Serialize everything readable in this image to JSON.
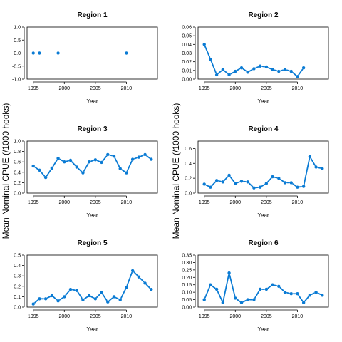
{
  "figure": {
    "ylabel": "Mean Nominal CPUE (/1000 hooks)",
    "series_color": "#0a7bd4"
  },
  "chart_data": [
    {
      "type": "line",
      "title": "Region 1",
      "xlabel": "Year",
      "ylabel": "",
      "xlim": [
        1994,
        2015
      ],
      "ylim": [
        -1.0,
        1.0
      ],
      "xticks": [
        1995,
        2000,
        2005,
        2010
      ],
      "yticks": [
        -1.0,
        -0.5,
        0.0,
        0.5,
        1.0
      ],
      "ytick_labels": [
        "-1.0",
        "-0.5",
        "0.0",
        "0.5",
        "1.0"
      ],
      "series": [
        {
          "x": [
            1995,
            1996,
            1999,
            2010
          ],
          "y": [
            0,
            0,
            0,
            0
          ],
          "connect": false
        }
      ]
    },
    {
      "type": "line",
      "title": "Region 2",
      "xlabel": "Year",
      "ylabel": "",
      "xlim": [
        1994,
        2015
      ],
      "ylim": [
        0,
        0.06
      ],
      "xticks": [
        1995,
        2000,
        2005,
        2010
      ],
      "yticks": [
        0,
        0.01,
        0.02,
        0.03,
        0.04,
        0.05,
        0.06
      ],
      "ytick_labels": [
        "0.00",
        "0.01",
        "0.02",
        "0.03",
        "0.04",
        "0.05",
        "0.06"
      ],
      "series": [
        {
          "x": [
            1995,
            1996,
            1997,
            1998,
            1999,
            2000,
            2001,
            2002,
            2003,
            2004,
            2005,
            2006,
            2007,
            2008,
            2009,
            2010,
            2011
          ],
          "y": [
            0.04,
            0.023,
            0.005,
            0.011,
            0.005,
            0.009,
            0.013,
            0.008,
            0.012,
            0.015,
            0.014,
            0.011,
            0.009,
            0.011,
            0.009,
            0.003,
            0.013
          ],
          "connect": true
        }
      ]
    },
    {
      "type": "line",
      "title": "Region 3",
      "xlabel": "Year",
      "ylabel": "",
      "xlim": [
        1994,
        2015
      ],
      "ylim": [
        0,
        1.0
      ],
      "xticks": [
        1995,
        2000,
        2005,
        2010
      ],
      "yticks": [
        0,
        0.2,
        0.4,
        0.6,
        0.8,
        1.0
      ],
      "ytick_labels": [
        "0.0",
        "0.2",
        "0.4",
        "0.6",
        "0.8",
        "1.0"
      ],
      "series": [
        {
          "x": [
            1995,
            1996,
            1997,
            1998,
            1999,
            2000,
            2001,
            2002,
            2003,
            2004,
            2005,
            2006,
            2007,
            2008,
            2009,
            2010,
            2011,
            2012,
            2013,
            2014
          ],
          "y": [
            0.52,
            0.44,
            0.3,
            0.48,
            0.67,
            0.6,
            0.63,
            0.5,
            0.39,
            0.6,
            0.64,
            0.59,
            0.74,
            0.71,
            0.47,
            0.39,
            0.65,
            0.69,
            0.74,
            0.65
          ],
          "connect": true
        }
      ]
    },
    {
      "type": "line",
      "title": "Region 4",
      "xlabel": "Year",
      "ylabel": "",
      "xlim": [
        1994,
        2015
      ],
      "ylim": [
        0,
        0.7
      ],
      "xticks": [
        1995,
        2000,
        2005,
        2010
      ],
      "yticks": [
        0,
        0.2,
        0.4,
        0.6
      ],
      "ytick_labels": [
        "0.0",
        "0.2",
        "0.4",
        "0.6"
      ],
      "series": [
        {
          "x": [
            1995,
            1996,
            1997,
            1998,
            1999,
            2000,
            2001,
            2002,
            2003,
            2004,
            2005,
            2006,
            2007,
            2008,
            2009,
            2010,
            2011,
            2012,
            2013,
            2014
          ],
          "y": [
            0.12,
            0.08,
            0.17,
            0.15,
            0.24,
            0.13,
            0.16,
            0.15,
            0.07,
            0.08,
            0.13,
            0.22,
            0.2,
            0.14,
            0.14,
            0.08,
            0.09,
            0.49,
            0.35,
            0.33
          ],
          "connect": true
        }
      ]
    },
    {
      "type": "line",
      "title": "Region 5",
      "xlabel": "Year",
      "ylabel": "",
      "xlim": [
        1994,
        2015
      ],
      "ylim": [
        0,
        0.5
      ],
      "xticks": [
        1995,
        2000,
        2005,
        2010
      ],
      "yticks": [
        0,
        0.1,
        0.2,
        0.3,
        0.4,
        0.5
      ],
      "ytick_labels": [
        "0.0",
        "0.1",
        "0.2",
        "0.3",
        "0.4",
        "0.5"
      ],
      "series": [
        {
          "x": [
            1995,
            1996,
            1997,
            1998,
            1999,
            2000,
            2001,
            2002,
            2003,
            2004,
            2005,
            2006,
            2007,
            2008,
            2009,
            2010,
            2011,
            2012,
            2013,
            2014
          ],
          "y": [
            0.03,
            0.08,
            0.08,
            0.11,
            0.06,
            0.1,
            0.17,
            0.16,
            0.07,
            0.11,
            0.08,
            0.14,
            0.05,
            0.1,
            0.07,
            0.19,
            0.35,
            0.29,
            0.23,
            0.17
          ],
          "connect": true
        }
      ]
    },
    {
      "type": "line",
      "title": "Region 6",
      "xlabel": "Year",
      "ylabel": "",
      "xlim": [
        1994,
        2015
      ],
      "ylim": [
        0,
        0.35
      ],
      "xticks": [
        1995,
        2000,
        2005,
        2010
      ],
      "yticks": [
        0,
        0.05,
        0.1,
        0.15,
        0.2,
        0.25,
        0.3,
        0.35
      ],
      "ytick_labels": [
        "0.00",
        "0.05",
        "0.10",
        "0.15",
        "0.20",
        "0.25",
        "0.30",
        "0.35"
      ],
      "series": [
        {
          "x": [
            1995,
            1996,
            1997,
            1998,
            1999,
            2000,
            2001,
            2002,
            2003,
            2004,
            2005,
            2006,
            2007,
            2008,
            2009,
            2010,
            2011,
            2012,
            2013,
            2014
          ],
          "y": [
            0.05,
            0.15,
            0.12,
            0.03,
            0.23,
            0.06,
            0.03,
            0.05,
            0.05,
            0.12,
            0.12,
            0.15,
            0.14,
            0.1,
            0.09,
            0.09,
            0.03,
            0.08,
            0.1,
            0.08
          ],
          "connect": true
        }
      ]
    }
  ]
}
